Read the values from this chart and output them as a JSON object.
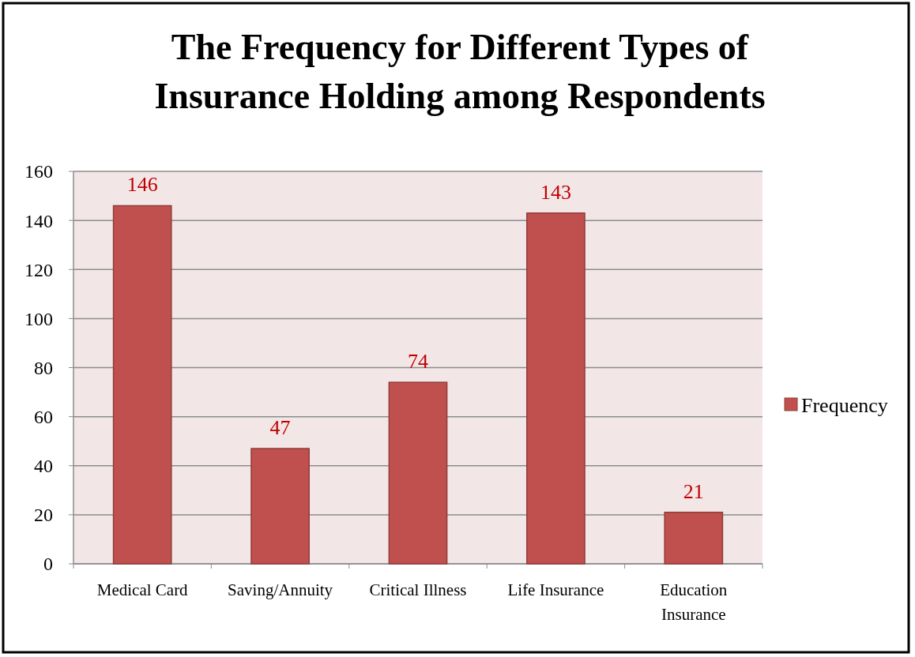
{
  "chart_data": {
    "type": "bar",
    "title": "The Frequency for Different Types of Insurance Holding among Respondents",
    "categories": [
      "Medical Card",
      "Saving/Annuity",
      "Critical Illness",
      "Life Insurance",
      "Education Insurance"
    ],
    "series": [
      {
        "name": "Frequency",
        "color": "#c0504d",
        "values": [
          146,
          47,
          74,
          143,
          21
        ]
      }
    ],
    "ylim": [
      0,
      160
    ],
    "yticks": [
      0,
      20,
      40,
      60,
      80,
      100,
      120,
      140,
      160
    ],
    "grid": "y",
    "legend": "right",
    "data_labels": true
  }
}
